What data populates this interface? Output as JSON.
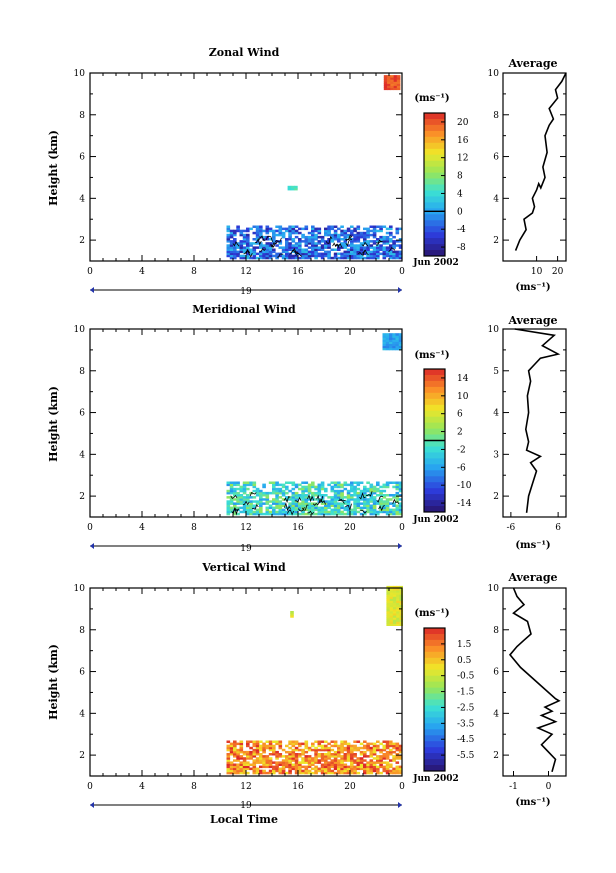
{
  "figure": {
    "xlabel": "Local Time",
    "x_ticks": [
      "0",
      "4",
      "8",
      "12",
      "16",
      "20",
      "0"
    ],
    "day_label": "19",
    "date_label": "Jun 2002",
    "y_ticks": [
      "2",
      "4",
      "6",
      "8",
      "10"
    ]
  },
  "panels": [
    {
      "title": "Zonal Wind",
      "ylabel": "Height (km)",
      "unit": "(ms⁻¹)",
      "avg_title": "Average",
      "avg_unit": "(ms⁻¹)",
      "colorbar_ticks": [
        "20",
        "16",
        "12",
        "8",
        "4",
        "0",
        "-4",
        "-8"
      ],
      "colorbar_range": [
        -10,
        22
      ],
      "colorbar_zero_line": 0,
      "avg_ticks": [
        "10",
        "20"
      ],
      "avg_xlim": [
        -6,
        24
      ],
      "avg_y_ticks": [
        "2",
        "4",
        "6",
        "8",
        "10"
      ]
    },
    {
      "title": "Meridional Wind",
      "ylabel": "Height (km)",
      "unit": "(ms⁻¹)",
      "avg_title": "Average",
      "avg_unit": "(ms⁻¹)",
      "colorbar_ticks": [
        "14",
        "10",
        "6",
        "2",
        "-2",
        "-6",
        "-10",
        "-14"
      ],
      "colorbar_range": [
        -16,
        16
      ],
      "colorbar_zero_line": 0,
      "avg_ticks": [
        "-6",
        "6"
      ],
      "avg_xlim": [
        -8,
        8
      ],
      "avg_y_ticks": [
        "2",
        "3",
        "4",
        "5",
        "10"
      ]
    },
    {
      "title": "Vertical Wind",
      "ylabel": "Height (km)",
      "unit": "(ms⁻¹)",
      "avg_title": "Average",
      "avg_unit": "(ms⁻¹)",
      "colorbar_ticks": [
        "1.5",
        "0.5",
        "-0.5",
        "-1.5",
        "-2.5",
        "-3.5",
        "-4.5",
        "-5.5"
      ],
      "colorbar_range": [
        -6.5,
        2.5
      ],
      "colorbar_zero_line": null,
      "avg_ticks": [
        "-1",
        "0"
      ],
      "avg_xlim": [
        -1.3,
        0.5
      ],
      "avg_y_ticks": [
        "2",
        "4",
        "6",
        "8",
        "10"
      ]
    }
  ],
  "chart_data": [
    {
      "type": "heatmap",
      "title": "Zonal Wind",
      "xlabel": "",
      "ylabel": "Height (km)",
      "xlim": [
        0,
        24
      ],
      "ylim": [
        1,
        10
      ],
      "colorbar_range": [
        -10,
        22
      ],
      "data_coverage": [
        {
          "x": [
            10.5,
            24
          ],
          "y": [
            1.1,
            2.7
          ],
          "value": -3
        },
        {
          "x": [
            22.6,
            23.8
          ],
          "y": [
            9.2,
            9.8
          ],
          "value": 20
        },
        {
          "x": [
            15.2,
            15.8
          ],
          "y": [
            4.4,
            4.6
          ],
          "value": 5
        }
      ],
      "profile": {
        "x": [
          0,
          2,
          5,
          4,
          8,
          9,
          8,
          10,
          11,
          12,
          14,
          13,
          15,
          14,
          16,
          18,
          16,
          20,
          19,
          22,
          24
        ],
        "y": [
          1.5,
          2,
          2.5,
          3,
          3.3,
          3.6,
          4,
          4.4,
          4.7,
          4.5,
          5,
          5.5,
          6.2,
          7,
          7.5,
          7.8,
          8.3,
          8.8,
          9.2,
          9.6,
          10
        ]
      }
    },
    {
      "type": "heatmap",
      "title": "Meridional Wind",
      "xlabel": "",
      "ylabel": "Height (km)",
      "xlim": [
        0,
        24
      ],
      "ylim": [
        1,
        10
      ],
      "colorbar_range": [
        -16,
        16
      ],
      "data_coverage": [
        {
          "x": [
            10.5,
            24
          ],
          "y": [
            1.1,
            2.7
          ],
          "value": -2
        },
        {
          "x": [
            22.5,
            23.8
          ],
          "y": [
            9,
            9.7
          ],
          "value": -6
        }
      ],
      "profile": {
        "x": [
          -2,
          -1.5,
          -0.5,
          0.5,
          -1,
          1.5,
          -2,
          -1.5,
          -2.2,
          -1.5,
          -1.8,
          -1,
          -1.5,
          0,
          1.5,
          6,
          2,
          5,
          -5
        ],
        "y": [
          1.2,
          2,
          2.6,
          3.2,
          3.6,
          3.9,
          4.2,
          4.6,
          5.2,
          6,
          6.8,
          7.5,
          8,
          8.3,
          8.6,
          8.8,
          9.2,
          9.7,
          10
        ]
      }
    },
    {
      "type": "heatmap",
      "title": "Vertical Wind",
      "xlabel": "Local Time",
      "ylabel": "Height (km)",
      "xlim": [
        0,
        24
      ],
      "ylim": [
        1,
        10
      ],
      "colorbar_range": [
        -6.5,
        2.5
      ],
      "data_coverage": [
        {
          "x": [
            10.5,
            24
          ],
          "y": [
            1.1,
            2.7
          ],
          "value": 1.2
        },
        {
          "x": [
            22.8,
            24
          ],
          "y": [
            8.2,
            10
          ],
          "value": -0.3
        },
        {
          "x": [
            15.4,
            15.6
          ],
          "y": [
            8.6,
            8.8
          ],
          "value": -0.3
        }
      ],
      "profile": {
        "x": [
          0.1,
          0.2,
          -0.2,
          0.1,
          -0.3,
          0.2,
          -0.2,
          0.1,
          -0.1,
          0.3,
          0.2,
          -0.8,
          -1.1,
          -0.9,
          -0.7,
          -0.5,
          -0.6,
          -1,
          -0.7,
          -0.9,
          -1
        ],
        "y": [
          1.2,
          1.8,
          2.5,
          3,
          3.3,
          3.6,
          3.9,
          4.1,
          4.3,
          4.6,
          4.7,
          6.2,
          6.8,
          7.2,
          7.5,
          7.8,
          8.4,
          8.8,
          9.2,
          9.6,
          10
        ]
      }
    }
  ]
}
